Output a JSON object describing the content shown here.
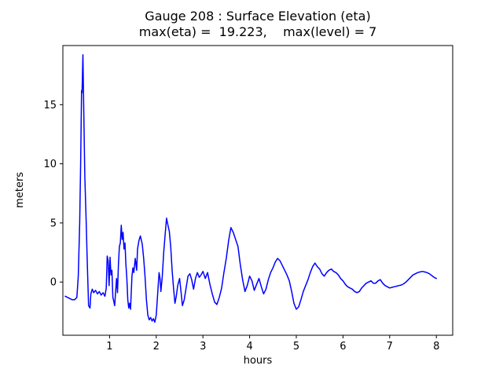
{
  "figure": {
    "background": "#ffffff"
  },
  "chart_data": {
    "type": "line",
    "title": "Gauge 208 : Surface Elevation (eta)",
    "subtitle": "max(eta) =  19.223,    max(level) = 7",
    "xlabel": "hours",
    "ylabel": "meters",
    "xlim": [
      0,
      8.35
    ],
    "ylim": [
      -4.5,
      20.0
    ],
    "xticks": [
      1,
      2,
      3,
      4,
      5,
      6,
      7,
      8
    ],
    "yticks": [
      0,
      5,
      10,
      15
    ],
    "grid": false,
    "legend": "none",
    "line_color": "#0000ff",
    "max_eta": 19.223,
    "max_level": 7,
    "series": [
      {
        "name": "eta",
        "x": [
          0.05,
          0.1,
          0.15,
          0.2,
          0.25,
          0.3,
          0.33,
          0.36,
          0.38,
          0.4,
          0.41,
          0.43,
          0.45,
          0.47,
          0.5,
          0.52,
          0.55,
          0.58,
          0.6,
          0.63,
          0.66,
          0.7,
          0.74,
          0.78,
          0.82,
          0.86,
          0.9,
          0.93,
          0.95,
          0.97,
          0.99,
          1.01,
          1.03,
          1.05,
          1.07,
          1.09,
          1.11,
          1.13,
          1.15,
          1.17,
          1.19,
          1.21,
          1.23,
          1.25,
          1.27,
          1.29,
          1.31,
          1.33,
          1.35,
          1.37,
          1.39,
          1.41,
          1.43,
          1.45,
          1.48,
          1.5,
          1.52,
          1.55,
          1.58,
          1.6,
          1.63,
          1.66,
          1.7,
          1.73,
          1.76,
          1.79,
          1.82,
          1.85,
          1.88,
          1.91,
          1.94,
          1.97,
          2.0,
          2.03,
          2.06,
          2.08,
          2.1,
          2.13,
          2.16,
          2.19,
          2.22,
          2.25,
          2.28,
          2.31,
          2.34,
          2.37,
          2.4,
          2.43,
          2.46,
          2.5,
          2.53,
          2.56,
          2.6,
          2.64,
          2.68,
          2.72,
          2.76,
          2.8,
          2.84,
          2.88,
          2.92,
          2.96,
          3.0,
          3.05,
          3.1,
          3.15,
          3.2,
          3.25,
          3.3,
          3.35,
          3.4,
          3.45,
          3.5,
          3.55,
          3.6,
          3.65,
          3.7,
          3.75,
          3.8,
          3.85,
          3.9,
          3.95,
          4.0,
          4.05,
          4.1,
          4.15,
          4.2,
          4.25,
          4.3,
          4.35,
          4.4,
          4.45,
          4.5,
          4.55,
          4.6,
          4.65,
          4.7,
          4.75,
          4.8,
          4.85,
          4.9,
          4.95,
          5.0,
          5.05,
          5.1,
          5.15,
          5.2,
          5.25,
          5.3,
          5.35,
          5.4,
          5.45,
          5.5,
          5.55,
          5.6,
          5.65,
          5.7,
          5.75,
          5.8,
          5.85,
          5.9,
          5.95,
          6.0,
          6.05,
          6.1,
          6.15,
          6.2,
          6.25,
          6.3,
          6.35,
          6.4,
          6.45,
          6.5,
          6.55,
          6.6,
          6.65,
          6.7,
          6.75,
          6.8,
          6.85,
          6.9,
          6.95,
          7.0,
          7.05,
          7.1,
          7.15,
          7.2,
          7.25,
          7.3,
          7.35,
          7.4,
          7.45,
          7.5,
          7.55,
          7.6,
          7.65,
          7.7,
          7.75,
          7.8,
          7.85,
          7.9,
          7.95,
          8.0
        ],
        "y": [
          -1.2,
          -1.3,
          -1.4,
          -1.5,
          -1.5,
          -1.3,
          0.5,
          5.0,
          10.0,
          16.2,
          16.0,
          19.223,
          14.0,
          9.0,
          5.0,
          2.0,
          -2.0,
          -2.2,
          -1.0,
          -0.6,
          -0.9,
          -0.7,
          -1.0,
          -0.8,
          -1.1,
          -0.9,
          -1.2,
          -0.5,
          2.2,
          1.8,
          -0.3,
          2.1,
          0.6,
          1.0,
          -1.3,
          -1.6,
          -2.0,
          -0.8,
          0.3,
          -0.9,
          1.5,
          3.0,
          3.3,
          4.8,
          3.6,
          4.2,
          2.8,
          3.3,
          1.5,
          0.3,
          -1.5,
          -2.2,
          -1.8,
          -2.3,
          0.5,
          1.2,
          0.8,
          2.0,
          1.0,
          2.8,
          3.5,
          3.9,
          3.2,
          2.0,
          0.5,
          -1.5,
          -2.8,
          -3.2,
          -3.0,
          -3.3,
          -3.1,
          -3.4,
          -2.8,
          -1.0,
          0.8,
          0.3,
          -0.8,
          0.5,
          2.5,
          4.0,
          5.4,
          4.8,
          4.3,
          3.0,
          1.0,
          -0.5,
          -1.8,
          -1.2,
          -0.3,
          0.3,
          -0.8,
          -2.0,
          -1.5,
          -0.5,
          0.5,
          0.7,
          0.2,
          -0.6,
          0.3,
          0.8,
          0.4,
          0.6,
          0.9,
          0.3,
          0.8,
          -0.2,
          -1.0,
          -1.7,
          -1.9,
          -1.3,
          -0.5,
          0.8,
          2.0,
          3.5,
          4.6,
          4.2,
          3.6,
          3.0,
          1.5,
          0.2,
          -0.8,
          -0.3,
          0.5,
          0.1,
          -0.7,
          -0.2,
          0.3,
          -0.4,
          -1.0,
          -0.6,
          0.2,
          0.8,
          1.2,
          1.7,
          2.0,
          1.8,
          1.4,
          1.0,
          0.6,
          0.1,
          -0.8,
          -1.8,
          -2.3,
          -2.1,
          -1.5,
          -0.8,
          -0.3,
          0.2,
          0.8,
          1.3,
          1.6,
          1.3,
          1.1,
          0.7,
          0.5,
          0.8,
          1.0,
          1.1,
          0.9,
          0.8,
          0.6,
          0.3,
          0.1,
          -0.2,
          -0.4,
          -0.5,
          -0.6,
          -0.8,
          -0.9,
          -0.8,
          -0.5,
          -0.3,
          -0.1,
          0.0,
          0.1,
          -0.1,
          -0.1,
          0.1,
          0.2,
          -0.1,
          -0.3,
          -0.4,
          -0.5,
          -0.45,
          -0.4,
          -0.35,
          -0.3,
          -0.25,
          -0.15,
          0.0,
          0.2,
          0.4,
          0.6,
          0.7,
          0.8,
          0.85,
          0.9,
          0.85,
          0.8,
          0.7,
          0.55,
          0.4,
          0.3
        ]
      }
    ]
  }
}
